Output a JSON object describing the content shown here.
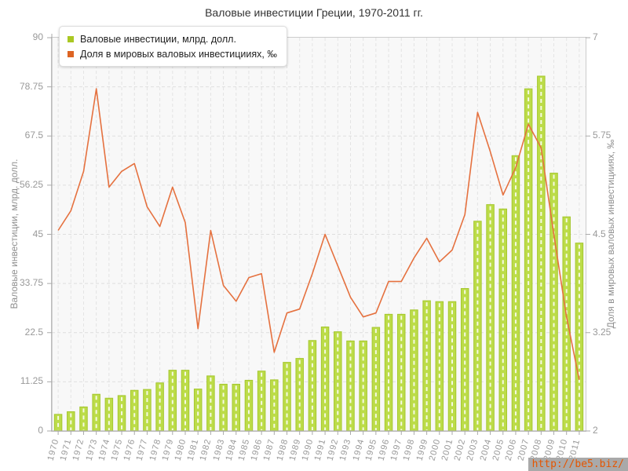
{
  "title": "Валовые инвестиции Греции, 1970-2011 гг.",
  "watermark": "http://be5.biz/",
  "legend": [
    {
      "label": "Валовые инвестиции, млрд. долл.",
      "color": "#aac823"
    },
    {
      "label": "Доля в мировых валовых инвестицииях, ‰",
      "color": "#dd6423"
    }
  ],
  "chart_data": {
    "type": "bar",
    "title": "Валовые инвестиции Греции, 1970-2011 гг.",
    "categories": [
      "1970",
      "1971",
      "1972",
      "1973",
      "1974",
      "1975",
      "1976",
      "1977",
      "1978",
      "1979",
      "1980",
      "1981",
      "1982",
      "1983",
      "1984",
      "1985",
      "1986",
      "1987",
      "1988",
      "1989",
      "1990",
      "1991",
      "1992",
      "1993",
      "1994",
      "1995",
      "1996",
      "1997",
      "1998",
      "1999",
      "2000",
      "2001",
      "2002",
      "2003",
      "2004",
      "2005",
      "2006",
      "2007",
      "2008",
      "2009",
      "2010",
      "2011"
    ],
    "series": [
      {
        "name": "Валовые инвестиции, млрд. долл.",
        "type": "bar",
        "axis": "left",
        "color": "#bcdc48",
        "border_color": "#a5c72f",
        "values": [
          3.8,
          4.4,
          5.5,
          8.4,
          7.5,
          8.1,
          9.3,
          9.5,
          11.0,
          13.9,
          13.9,
          9.6,
          12.6,
          10.7,
          10.7,
          11.6,
          13.7,
          11.7,
          15.7,
          16.6,
          20.7,
          23.8,
          22.7,
          20.6,
          20.6,
          23.7,
          26.7,
          26.7,
          27.7,
          29.8,
          29.6,
          29.6,
          32.6,
          48.0,
          51.8,
          50.8,
          63.0,
          78.3,
          81.2,
          59.0,
          49.0,
          43.0
        ]
      },
      {
        "name": "Доля в мировых валовых инвестицииях, ‰",
        "type": "line",
        "axis": "right",
        "color": "#e5713f",
        "values": [
          4.55,
          4.8,
          5.3,
          6.35,
          5.1,
          5.3,
          5.4,
          4.85,
          4.6,
          5.1,
          4.65,
          3.3,
          4.55,
          3.85,
          3.65,
          3.95,
          4.0,
          3.0,
          3.5,
          3.55,
          4.0,
          4.5,
          4.1,
          3.7,
          3.45,
          3.5,
          3.9,
          3.9,
          4.2,
          4.45,
          4.15,
          4.3,
          4.75,
          6.05,
          5.55,
          5.0,
          5.35,
          5.9,
          5.6,
          4.5,
          3.45,
          2.65
        ]
      }
    ],
    "left_axis": {
      "label": "Валовые инвестиции, млрд. долл.",
      "min": 0,
      "max": 90,
      "ticks": [
        "0",
        "11.25",
        "22.5",
        "33.75",
        "45",
        "56.25",
        "67.5",
        "78.75",
        "90"
      ]
    },
    "right_axis": {
      "label": "Доля в мировых валовых инвестицииях, ‰",
      "min": 2,
      "max": 7,
      "ticks": [
        "2",
        "3.25",
        "4.5",
        "5.75",
        "7"
      ]
    },
    "grid": true,
    "legend_position": "top-left"
  }
}
